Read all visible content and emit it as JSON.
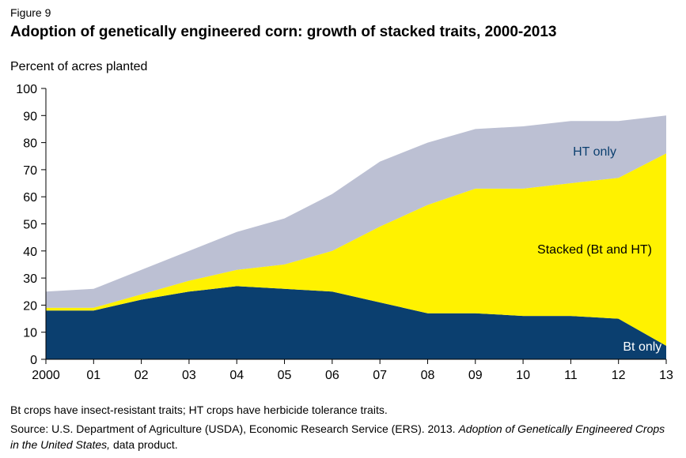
{
  "figure_label": "Figure 9",
  "chart_data": {
    "type": "area",
    "title": "Adoption of genetically engineered corn: growth of stacked traits, 2000-2013",
    "ylabel": "Percent of acres planted",
    "xlabel": "",
    "ylim": [
      0,
      100
    ],
    "yticks": [
      0,
      10,
      20,
      30,
      40,
      50,
      60,
      70,
      80,
      90,
      100
    ],
    "x": [
      2000,
      2001,
      2002,
      2003,
      2004,
      2005,
      2006,
      2007,
      2008,
      2009,
      2010,
      2011,
      2012,
      2013
    ],
    "x_tick_labels": [
      "2000",
      "01",
      "02",
      "03",
      "04",
      "05",
      "06",
      "07",
      "08",
      "09",
      "10",
      "11",
      "12",
      "13"
    ],
    "stacked": true,
    "grid": false,
    "series": [
      {
        "name": "Bt only",
        "color": "#0b3f6f",
        "label_color": "#ffffff",
        "values": [
          18,
          18,
          22,
          25,
          27,
          26,
          25,
          21,
          17,
          17,
          16,
          16,
          15,
          5
        ]
      },
      {
        "name": "Stacked (Bt and HT)",
        "color": "#fff200",
        "label_color": "#000000",
        "values": [
          1,
          1,
          2,
          4,
          6,
          9,
          15,
          28,
          40,
          46,
          47,
          49,
          52,
          71
        ]
      },
      {
        "name": "HT only",
        "color": "#bcc0d3",
        "label_color": "#0b3f6f",
        "values": [
          6,
          7,
          9,
          11,
          14,
          17,
          21,
          24,
          23,
          22,
          23,
          23,
          21,
          14
        ]
      }
    ]
  },
  "note": "Bt crops have insect-resistant traits; HT crops have herbicide tolerance traits.",
  "source": {
    "prefix": "Source: U.S. Department of Agriculture (USDA), Economic Research Service (ERS). 2013. ",
    "italic": "Adoption of Genetically Engineered Crops in the United States,",
    "suffix": " data product."
  }
}
